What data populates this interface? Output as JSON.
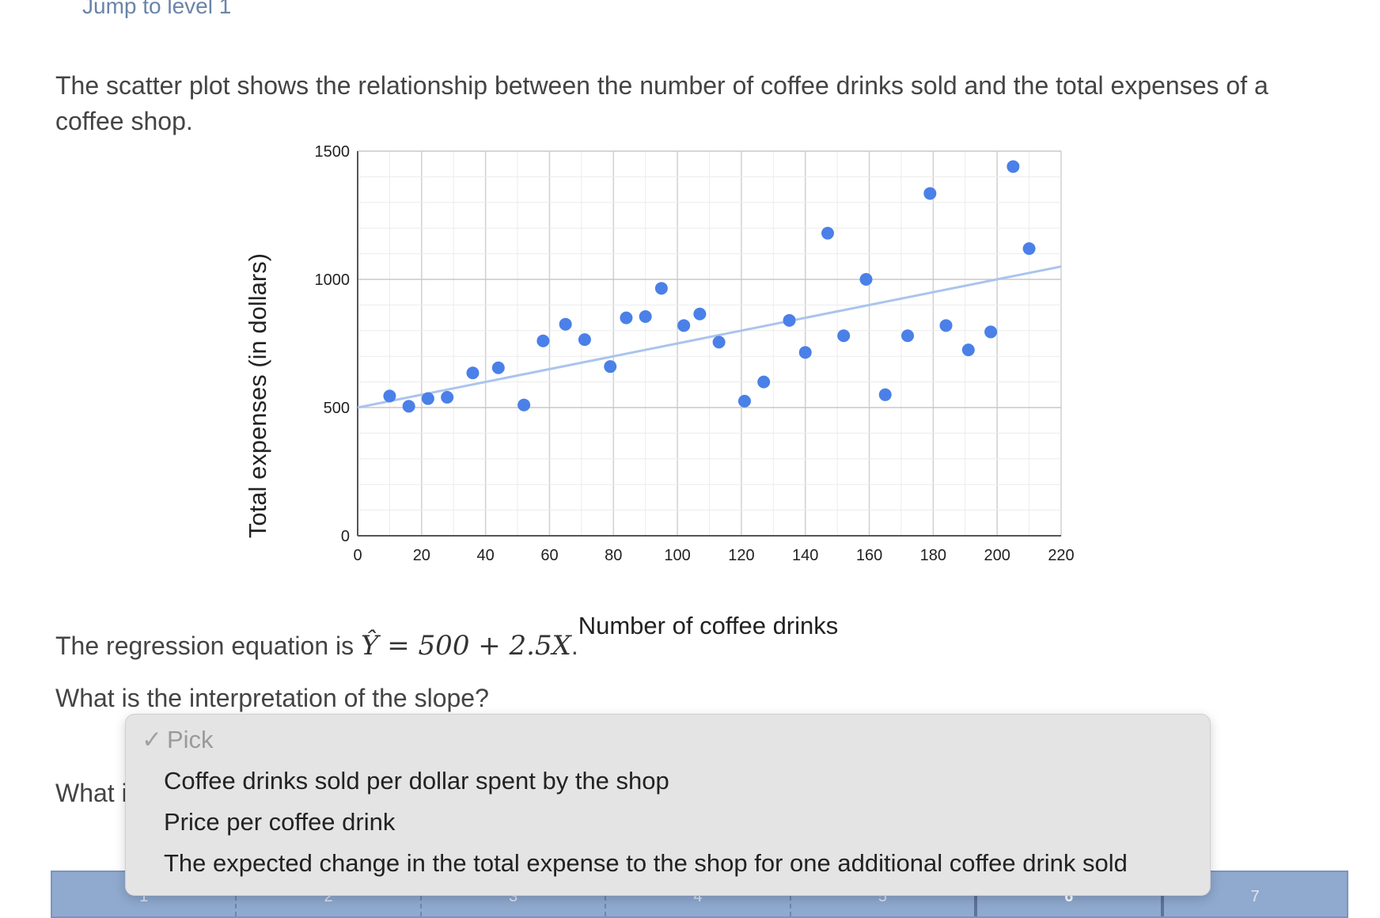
{
  "header": {
    "jump_link": "Jump to level 1"
  },
  "question": {
    "intro": "The scatter plot shows the relationship between the number of coffee drinks sold and the total expenses of a coffee shop.",
    "regression_prefix": "The regression equation is",
    "regression_equation": "Ŷ = 500 + 2.5X",
    "regression_suffix": ".",
    "slope_question": "What is the interpretation of the slope?",
    "second_question_partial": "What i"
  },
  "dropdown": {
    "selected": "Pick",
    "options": [
      "Coffee drinks sold per dollar spent by the shop",
      "Price per coffee drink",
      "The expected change in the total expense to the shop for one additional coffee drink sold"
    ]
  },
  "progress": {
    "steps": [
      "1",
      "2",
      "3",
      "4",
      "5",
      "6",
      "7"
    ],
    "current": "6"
  },
  "chart_data": {
    "type": "scatter",
    "xlabel": "Number of coffee drinks",
    "ylabel": "Total expenses (in dollars)",
    "xlim": [
      0,
      220
    ],
    "ylim": [
      0,
      1500
    ],
    "xticks": [
      "0",
      "20",
      "40",
      "60",
      "80",
      "100",
      "120",
      "140",
      "160",
      "180",
      "200",
      "220"
    ],
    "yticks": [
      "0",
      "500",
      "1000",
      "1500"
    ],
    "grid": true,
    "colors": {
      "points": "#4a80e8",
      "trend": "#aac4ee"
    },
    "trendline": {
      "intercept": 500,
      "slope": 2.5
    },
    "points": [
      {
        "x": 10,
        "y": 545
      },
      {
        "x": 16,
        "y": 505
      },
      {
        "x": 22,
        "y": 535
      },
      {
        "x": 28,
        "y": 540
      },
      {
        "x": 36,
        "y": 635
      },
      {
        "x": 44,
        "y": 655
      },
      {
        "x": 52,
        "y": 510
      },
      {
        "x": 58,
        "y": 760
      },
      {
        "x": 65,
        "y": 825
      },
      {
        "x": 71,
        "y": 765
      },
      {
        "x": 79,
        "y": 660
      },
      {
        "x": 84,
        "y": 850
      },
      {
        "x": 90,
        "y": 855
      },
      {
        "x": 95,
        "y": 965
      },
      {
        "x": 102,
        "y": 820
      },
      {
        "x": 107,
        "y": 865
      },
      {
        "x": 113,
        "y": 755
      },
      {
        "x": 121,
        "y": 525
      },
      {
        "x": 127,
        "y": 600
      },
      {
        "x": 135,
        "y": 840
      },
      {
        "x": 140,
        "y": 715
      },
      {
        "x": 147,
        "y": 1180
      },
      {
        "x": 152,
        "y": 780
      },
      {
        "x": 159,
        "y": 1000
      },
      {
        "x": 165,
        "y": 550
      },
      {
        "x": 172,
        "y": 780
      },
      {
        "x": 179,
        "y": 1335
      },
      {
        "x": 184,
        "y": 820
      },
      {
        "x": 191,
        "y": 725
      },
      {
        "x": 198,
        "y": 795
      },
      {
        "x": 205,
        "y": 1440
      },
      {
        "x": 210,
        "y": 1120
      }
    ]
  }
}
